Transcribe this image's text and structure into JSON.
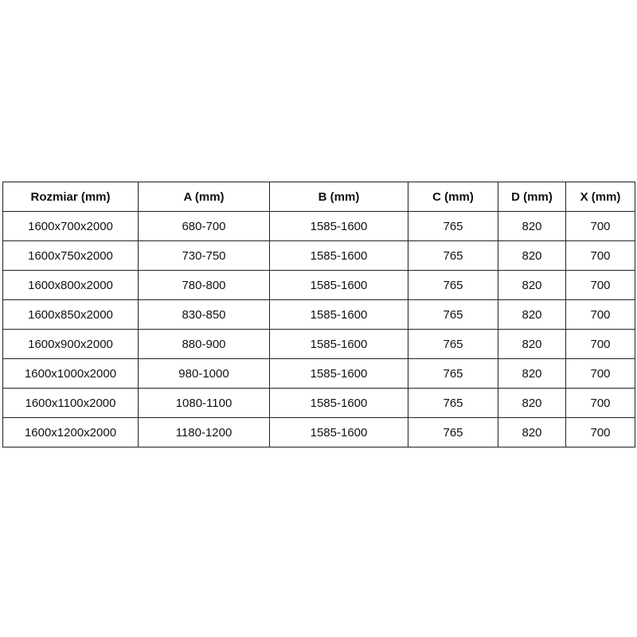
{
  "table": {
    "headers": [
      "Rozmiar (mm)",
      "A (mm)",
      "B (mm)",
      "C (mm)",
      "D (mm)",
      "X (mm)"
    ],
    "rows": [
      [
        "1600x700x2000",
        "680-700",
        "1585-1600",
        "765",
        "820",
        "700"
      ],
      [
        "1600x750x2000",
        "730-750",
        "1585-1600",
        "765",
        "820",
        "700"
      ],
      [
        "1600x800x2000",
        "780-800",
        "1585-1600",
        "765",
        "820",
        "700"
      ],
      [
        "1600x850x2000",
        "830-850",
        "1585-1600",
        "765",
        "820",
        "700"
      ],
      [
        "1600x900x2000",
        "880-900",
        "1585-1600",
        "765",
        "820",
        "700"
      ],
      [
        "1600x1000x2000",
        "980-1000",
        "1585-1600",
        "765",
        "820",
        "700"
      ],
      [
        "1600x1100x2000",
        "1080-1100",
        "1585-1600",
        "765",
        "820",
        "700"
      ],
      [
        "1600x1200x2000",
        "1180-1200",
        "1585-1600",
        "765",
        "820",
        "700"
      ]
    ]
  }
}
